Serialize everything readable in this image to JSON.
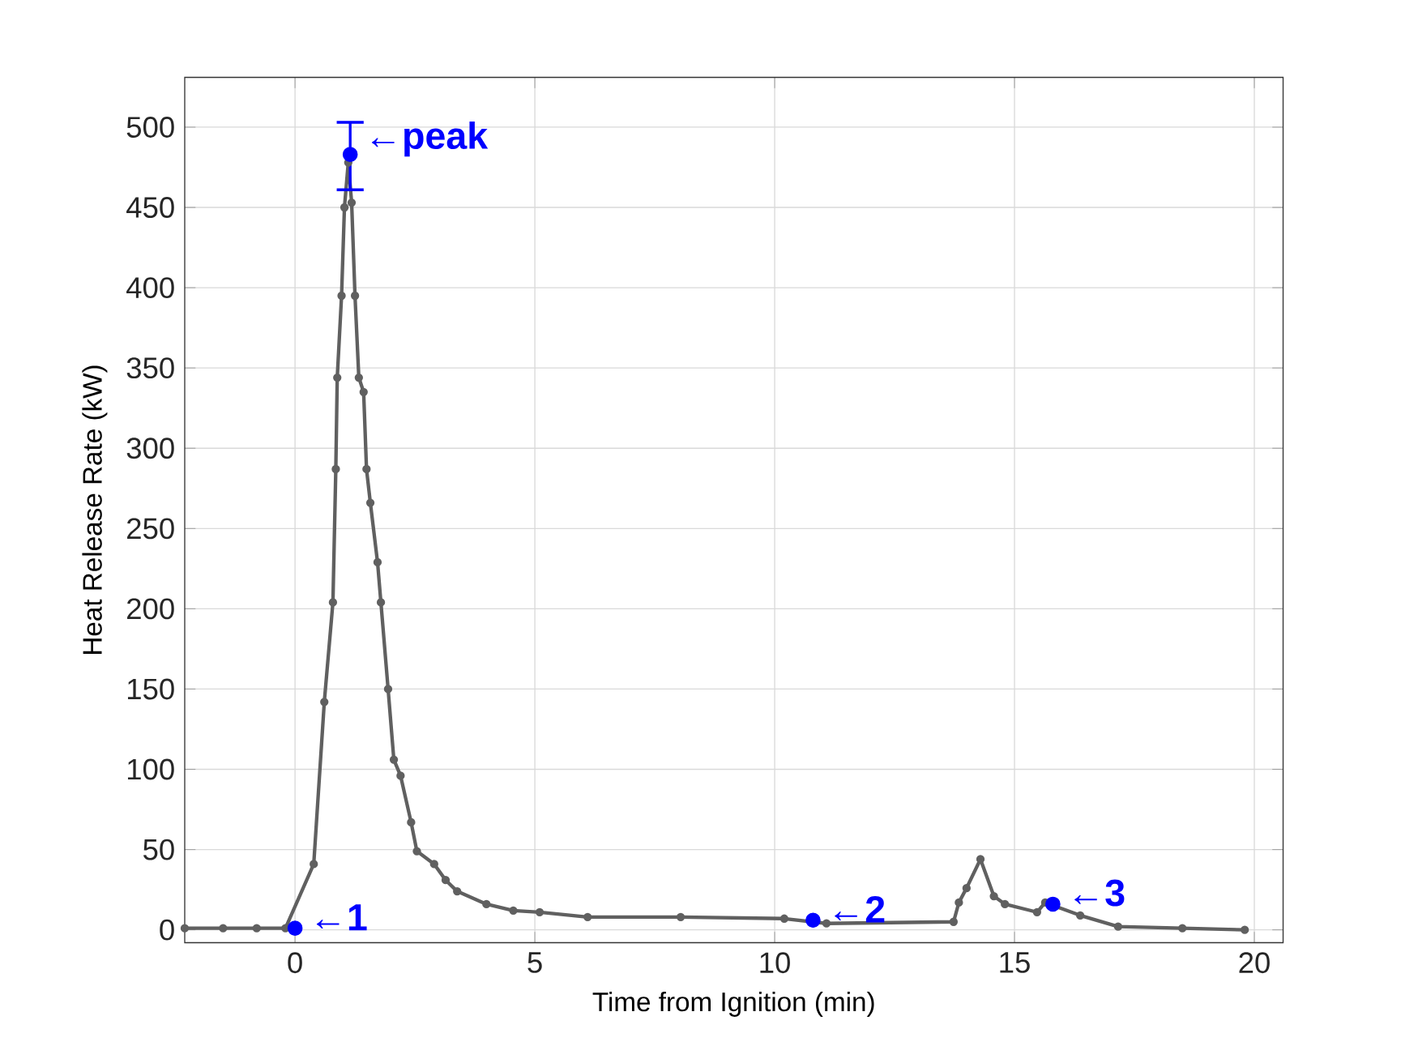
{
  "chart_data": {
    "type": "line",
    "xlabel": "Time from Ignition (min)",
    "ylabel": "Heat Release Rate (kW)",
    "xlim": [
      -2.3,
      20.6
    ],
    "ylim": [
      -8,
      531
    ],
    "xticks": [
      0,
      5,
      10,
      15,
      20
    ],
    "yticks": [
      0,
      50,
      100,
      150,
      200,
      250,
      300,
      350,
      400,
      450,
      500
    ],
    "grid": true,
    "series": [
      {
        "type": "line",
        "color": "#606060",
        "marker": "circle",
        "x": [
          -2.3,
          -1.5,
          -0.8,
          -0.2,
          0.39,
          0.61,
          0.79,
          0.85,
          0.88,
          0.97,
          1.03,
          1.11,
          1.18,
          1.25,
          1.33,
          1.43,
          1.49,
          1.57,
          1.72,
          1.79,
          1.94,
          2.06,
          2.2,
          2.42,
          2.54,
          2.9,
          3.14,
          3.38,
          3.99,
          4.55,
          5.1,
          6.1,
          8.04,
          10.2,
          11.08,
          13.73,
          13.84,
          14.0,
          14.29,
          14.57,
          14.8,
          15.47,
          15.64,
          16.37,
          17.16,
          18.5,
          19.8
        ],
        "values": [
          1,
          1,
          1,
          1,
          41,
          142,
          204,
          287,
          344,
          395,
          450,
          478,
          453,
          395,
          344,
          335,
          287,
          266,
          229,
          204,
          150,
          106,
          96,
          67,
          49,
          41,
          31,
          24,
          16,
          12,
          11,
          8,
          8,
          7,
          4,
          5,
          17,
          26,
          44,
          21,
          16,
          11,
          17,
          9,
          2,
          1,
          0
        ]
      },
      {
        "type": "scatter",
        "color": "#0000ff",
        "marker": "circle",
        "x": [
          0,
          1.15,
          10.8,
          15.8
        ],
        "values": [
          1,
          483,
          6,
          16
        ],
        "errors": [
          null,
          [
            461,
            503
          ],
          null,
          null
        ]
      }
    ],
    "annotations": [
      {
        "text": "←1",
        "x": 0,
        "y": 1
      },
      {
        "text": "←peak",
        "x": 1.15,
        "y": 483
      },
      {
        "text": "←2",
        "x": 10.8,
        "y": 6
      },
      {
        "text": "←3",
        "x": 15.8,
        "y": 16
      }
    ]
  }
}
